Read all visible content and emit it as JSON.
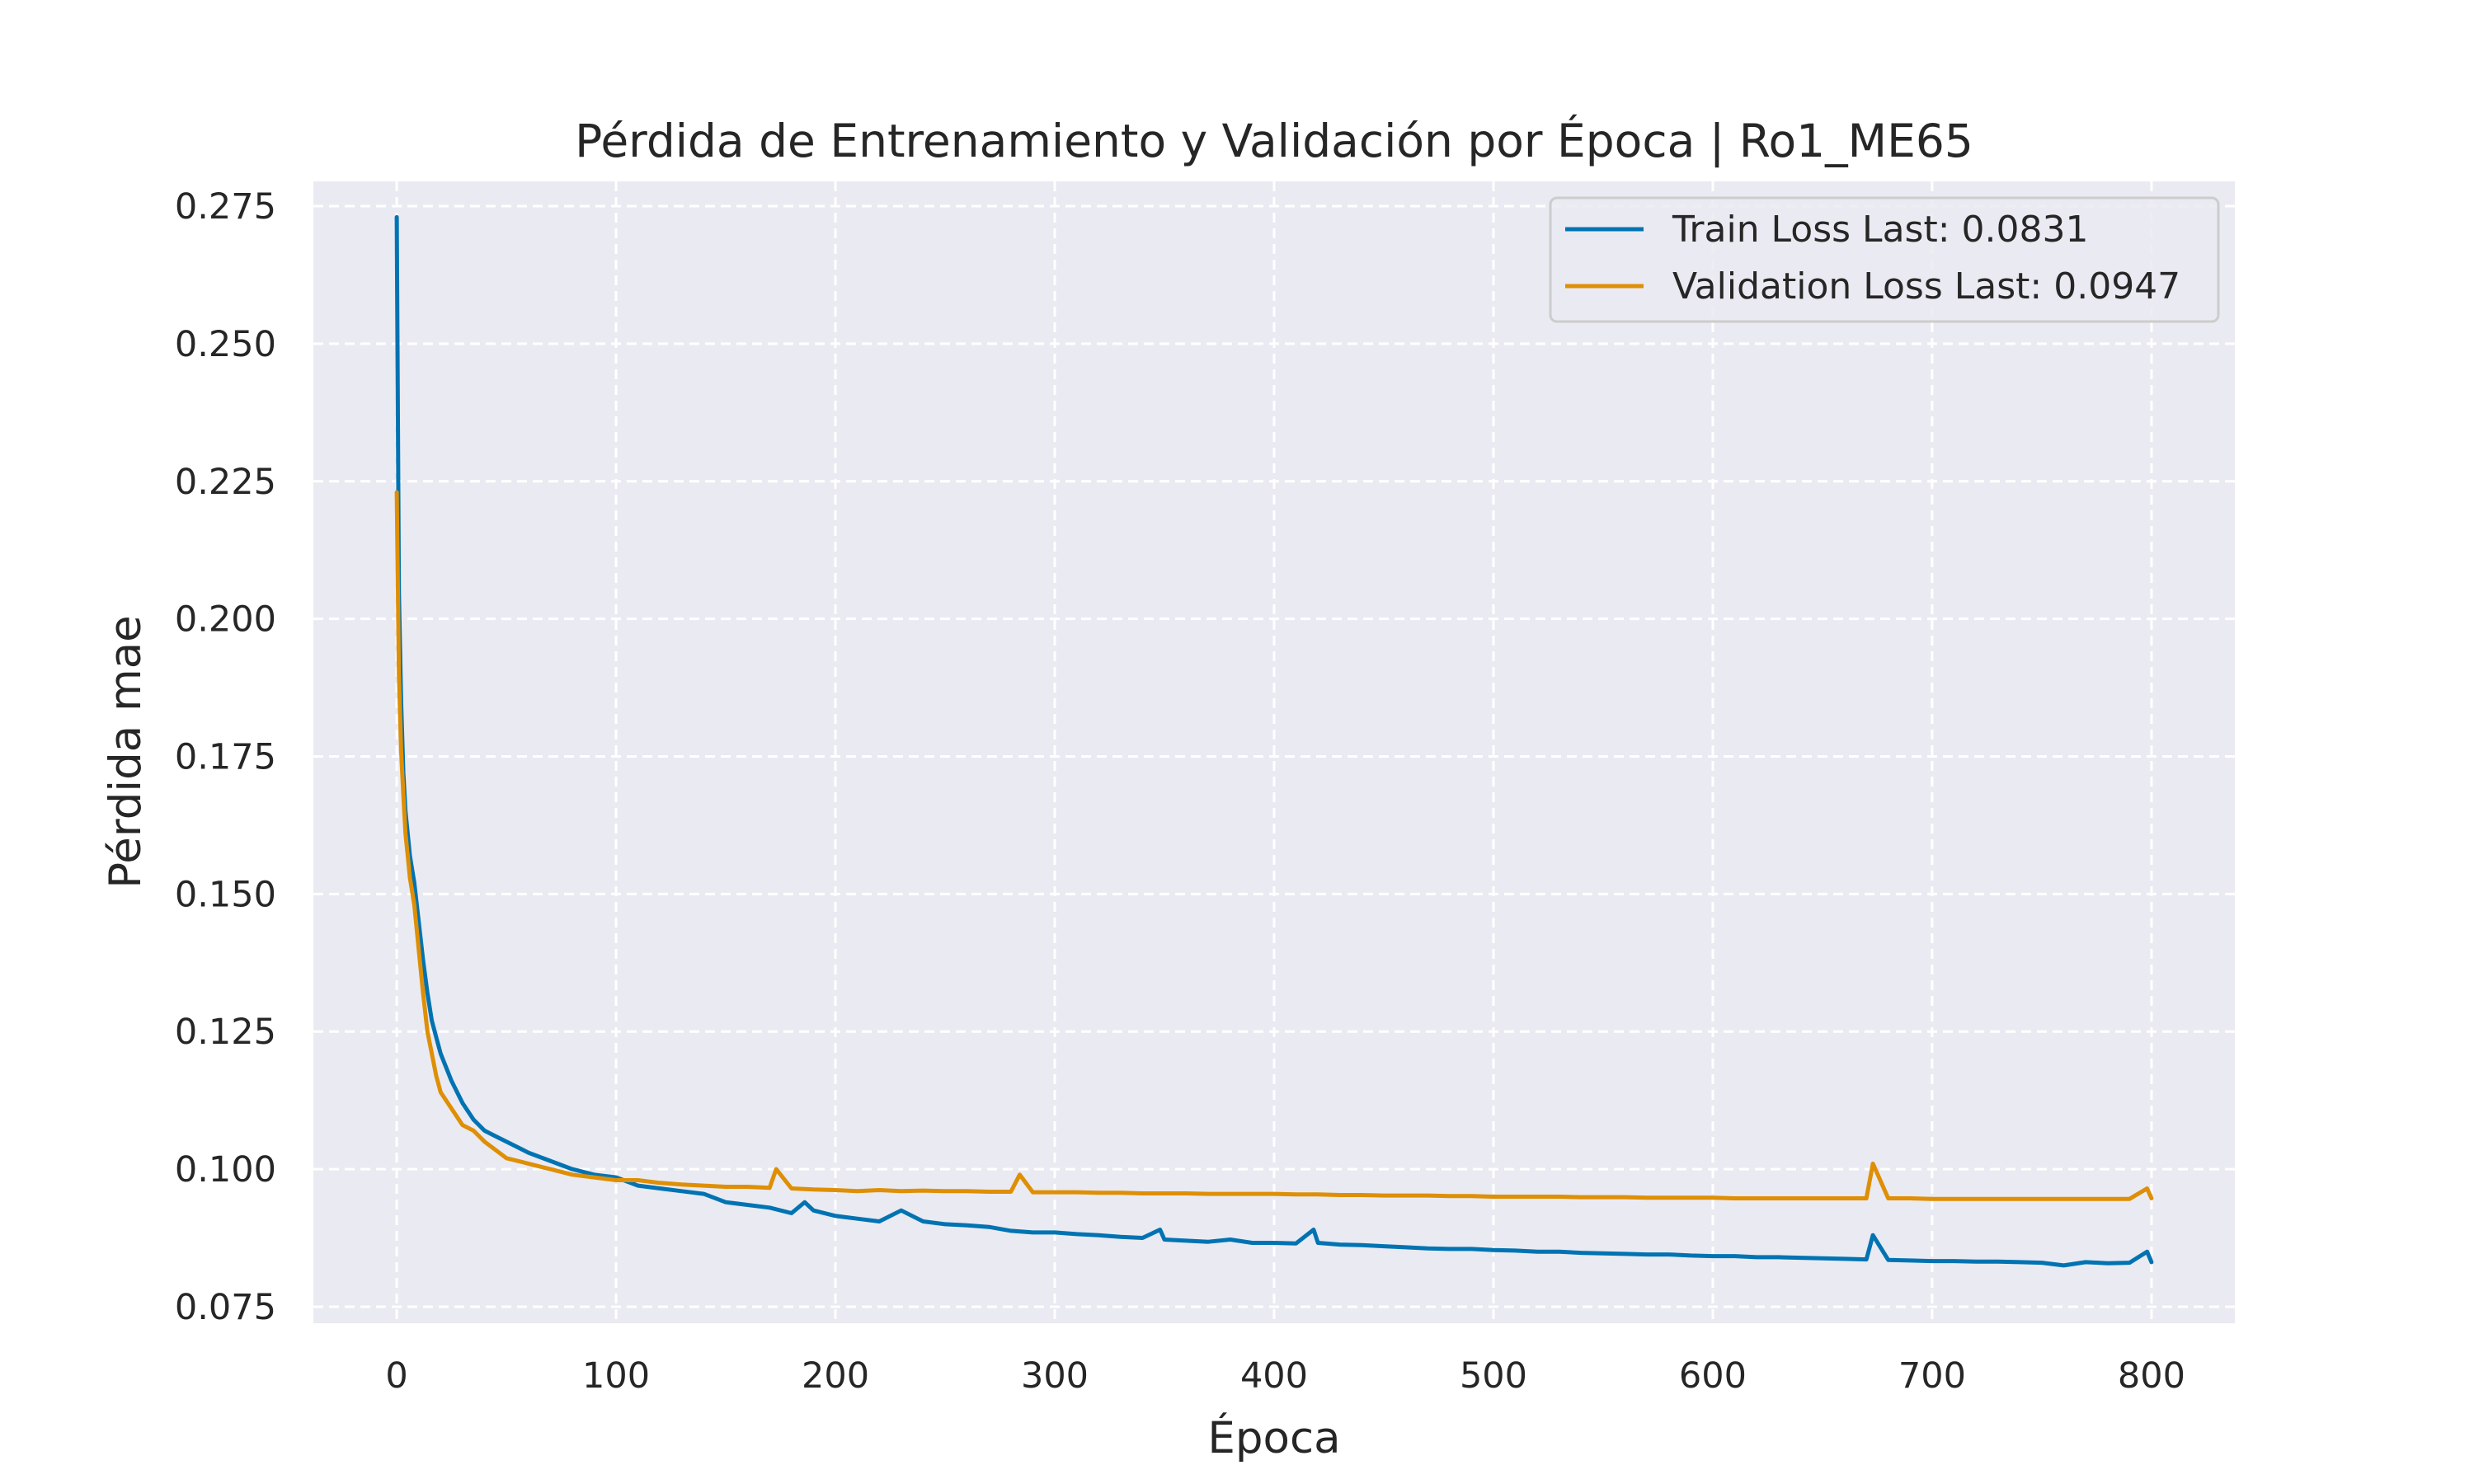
{
  "chart_data": {
    "type": "line",
    "title": "Pérdida de Entrenamiento y Validación por Época | Ro1_ME65",
    "xlabel": "Época",
    "ylabel": "Pérdida mae",
    "xlim": [
      -38,
      838
    ],
    "ylim": [
      0.072,
      0.2795
    ],
    "xticks": [
      0,
      100,
      200,
      300,
      400,
      500,
      600,
      700,
      800
    ],
    "yticks": [
      0.075,
      0.1,
      0.125,
      0.15,
      0.175,
      0.2,
      0.225,
      0.25,
      0.275
    ],
    "ytick_labels": [
      "0.075",
      "0.100",
      "0.125",
      "0.150",
      "0.175",
      "0.200",
      "0.225",
      "0.250",
      "0.275"
    ],
    "grid": true,
    "grid_style": "dashed",
    "legend_position": "top-right",
    "colors": {
      "plot_background": "#eaeaf2",
      "grid": "#ffffff"
    },
    "series": [
      {
        "name": "Train Loss Last: 0.0831",
        "color": "#0173b2",
        "x": [
          0,
          1,
          2,
          3,
          4,
          5,
          6,
          8,
          10,
          12,
          14,
          16,
          18,
          20,
          25,
          30,
          35,
          40,
          45,
          50,
          55,
          60,
          70,
          80,
          90,
          100,
          110,
          120,
          130,
          140,
          150,
          160,
          170,
          180,
          186,
          190,
          200,
          210,
          220,
          230,
          240,
          250,
          260,
          270,
          280,
          290,
          300,
          310,
          320,
          330,
          340,
          348,
          350,
          360,
          370,
          380,
          390,
          400,
          410,
          418,
          420,
          430,
          440,
          450,
          460,
          470,
          480,
          490,
          500,
          510,
          520,
          530,
          540,
          550,
          560,
          570,
          580,
          590,
          600,
          610,
          620,
          630,
          640,
          650,
          660,
          670,
          673,
          680,
          690,
          700,
          710,
          720,
          730,
          740,
          750,
          760,
          770,
          780,
          790,
          798,
          800
        ],
        "y": [
          0.273,
          0.205,
          0.185,
          0.172,
          0.165,
          0.161,
          0.157,
          0.152,
          0.145,
          0.138,
          0.132,
          0.127,
          0.124,
          0.121,
          0.116,
          0.112,
          0.109,
          0.107,
          0.106,
          0.105,
          0.104,
          0.103,
          0.1015,
          0.1,
          0.099,
          0.0985,
          0.097,
          0.0965,
          0.096,
          0.0955,
          0.094,
          0.0935,
          0.093,
          0.092,
          0.094,
          0.0925,
          0.0915,
          0.091,
          0.0905,
          0.0925,
          0.0905,
          0.09,
          0.0898,
          0.0895,
          0.0888,
          0.0885,
          0.0885,
          0.0882,
          0.088,
          0.0877,
          0.0875,
          0.089,
          0.0872,
          0.087,
          0.0868,
          0.0872,
          0.0866,
          0.0866,
          0.0865,
          0.089,
          0.0866,
          0.0863,
          0.0862,
          0.086,
          0.0858,
          0.0856,
          0.0855,
          0.0855,
          0.0853,
          0.0852,
          0.085,
          0.085,
          0.0848,
          0.0847,
          0.0846,
          0.0845,
          0.0845,
          0.0843,
          0.0842,
          0.0842,
          0.084,
          0.084,
          0.0839,
          0.0838,
          0.0837,
          0.0836,
          0.088,
          0.0835,
          0.0834,
          0.0833,
          0.0833,
          0.0832,
          0.0832,
          0.0831,
          0.083,
          0.0825,
          0.0831,
          0.0829,
          0.083,
          0.085,
          0.0831
        ]
      },
      {
        "name": "Validation Loss Last: 0.0947",
        "color": "#de8f05",
        "x": [
          0,
          1,
          2,
          3,
          4,
          5,
          6,
          8,
          10,
          12,
          14,
          16,
          18,
          20,
          25,
          30,
          35,
          40,
          45,
          50,
          55,
          60,
          70,
          80,
          90,
          100,
          110,
          120,
          130,
          140,
          150,
          160,
          170,
          173,
          180,
          190,
          200,
          210,
          220,
          230,
          240,
          250,
          260,
          270,
          280,
          284,
          290,
          300,
          310,
          320,
          330,
          340,
          350,
          360,
          370,
          380,
          390,
          400,
          410,
          420,
          430,
          440,
          450,
          460,
          470,
          480,
          490,
          500,
          510,
          520,
          530,
          540,
          550,
          560,
          570,
          580,
          590,
          600,
          610,
          620,
          630,
          640,
          650,
          660,
          670,
          673,
          680,
          690,
          700,
          710,
          720,
          730,
          740,
          750,
          760,
          770,
          780,
          790,
          798,
          800
        ],
        "y": [
          0.223,
          0.19,
          0.176,
          0.168,
          0.161,
          0.157,
          0.153,
          0.148,
          0.14,
          0.132,
          0.125,
          0.121,
          0.117,
          0.114,
          0.111,
          0.108,
          0.107,
          0.105,
          0.1035,
          0.102,
          0.1015,
          0.101,
          0.1,
          0.099,
          0.0985,
          0.098,
          0.098,
          0.0975,
          0.0972,
          0.097,
          0.0968,
          0.0968,
          0.0966,
          0.1,
          0.0965,
          0.0963,
          0.0962,
          0.096,
          0.0962,
          0.096,
          0.0961,
          0.096,
          0.096,
          0.0959,
          0.0959,
          0.099,
          0.0958,
          0.0958,
          0.0958,
          0.0957,
          0.0957,
          0.0956,
          0.0956,
          0.0956,
          0.0955,
          0.0955,
          0.0955,
          0.0955,
          0.0954,
          0.0954,
          0.0953,
          0.0953,
          0.0952,
          0.0952,
          0.0952,
          0.0951,
          0.0951,
          0.095,
          0.095,
          0.095,
          0.095,
          0.0949,
          0.0949,
          0.0949,
          0.0948,
          0.0948,
          0.0948,
          0.0948,
          0.0947,
          0.0947,
          0.0947,
          0.0947,
          0.0947,
          0.0947,
          0.0947,
          0.101,
          0.0947,
          0.0947,
          0.0946,
          0.0946,
          0.0946,
          0.0946,
          0.0946,
          0.0946,
          0.0946,
          0.0946,
          0.0946,
          0.0946,
          0.0965,
          0.0947
        ]
      }
    ]
  }
}
